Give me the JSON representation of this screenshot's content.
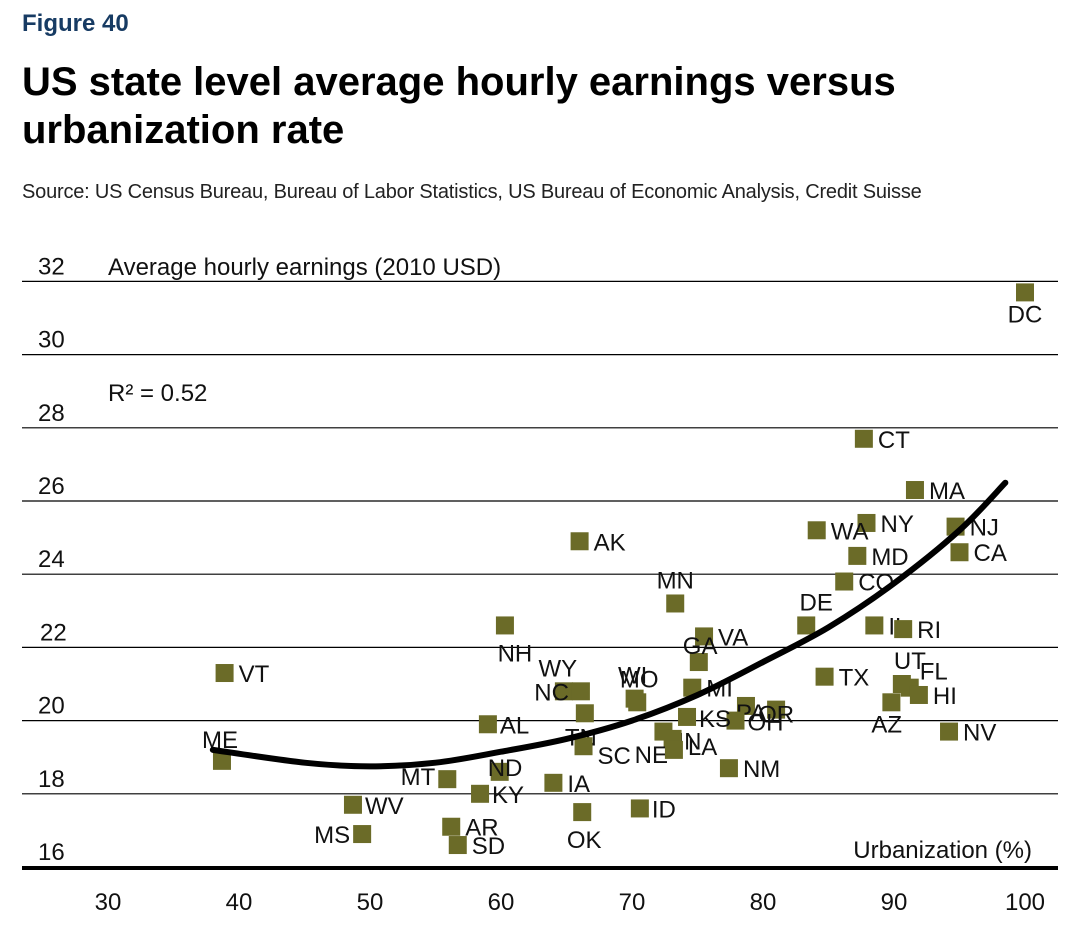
{
  "header": {
    "figure_label": "Figure 40",
    "title": "US state level average hourly earnings versus urbanization rate",
    "source": "Source: US Census Bureau, Bureau of Labor Statistics, US Bureau of Economic Analysis, Credit Suisse"
  },
  "colors": {
    "marker": "#6b6b28",
    "trend": "#000000",
    "grid": "#000000",
    "figure_label": "#173b63"
  },
  "chart_data": {
    "type": "scatter",
    "title": "US state level average hourly earnings versus urbanization rate",
    "xlabel": "Urbanization (%)",
    "ylabel": "Average hourly earnings (2010 USD)",
    "annotation": "R² = 0.52",
    "xlim": [
      25,
      102
    ],
    "ylim": [
      16,
      32
    ],
    "xticks": [
      30,
      40,
      50,
      60,
      70,
      80,
      90,
      100
    ],
    "yticks": [
      16,
      18,
      20,
      22,
      24,
      26,
      28,
      30,
      32
    ],
    "grid": "horizontal",
    "legend": "none",
    "trendline": {
      "type": "quadratic",
      "x": [
        38,
        45,
        50,
        55,
        60,
        65,
        70,
        75,
        80,
        85,
        90,
        95,
        98.5
      ],
      "y": [
        19.2,
        18.85,
        18.75,
        18.85,
        19.15,
        19.5,
        20.0,
        20.7,
        21.6,
        22.55,
        23.75,
        25.2,
        26.5
      ]
    },
    "points": [
      {
        "state": "DC",
        "x": 100,
        "y": 31.7
      },
      {
        "state": "CT",
        "x": 87.7,
        "y": 27.7
      },
      {
        "state": "MA",
        "x": 91.6,
        "y": 26.3
      },
      {
        "state": "NJ",
        "x": 94.7,
        "y": 25.3
      },
      {
        "state": "CA",
        "x": 95.0,
        "y": 24.6
      },
      {
        "state": "NY",
        "x": 87.9,
        "y": 25.4
      },
      {
        "state": "WA",
        "x": 84.1,
        "y": 25.2
      },
      {
        "state": "MD",
        "x": 87.2,
        "y": 24.5
      },
      {
        "state": "CO",
        "x": 86.2,
        "y": 23.8
      },
      {
        "state": "AK",
        "x": 66.0,
        "y": 24.9
      },
      {
        "state": "MN",
        "x": 73.3,
        "y": 23.2
      },
      {
        "state": "DE",
        "x": 83.3,
        "y": 22.6
      },
      {
        "state": "IL",
        "x": 88.5,
        "y": 22.6
      },
      {
        "state": "RI",
        "x": 90.7,
        "y": 22.5
      },
      {
        "state": "VA",
        "x": 75.5,
        "y": 22.3
      },
      {
        "state": "NH",
        "x": 60.3,
        "y": 22.6
      },
      {
        "state": "VT",
        "x": 38.9,
        "y": 21.3
      },
      {
        "state": "WY",
        "x": 64.8,
        "y": 20.8
      },
      {
        "state": "WI",
        "x": 70.2,
        "y": 20.6
      },
      {
        "state": "MO",
        "x": 70.4,
        "y": 20.5
      },
      {
        "state": "GA",
        "x": 75.1,
        "y": 21.6
      },
      {
        "state": "TX",
        "x": 84.7,
        "y": 21.2
      },
      {
        "state": "UT",
        "x": 90.6,
        "y": 21.0
      },
      {
        "state": "FL",
        "x": 91.2,
        "y": 20.9
      },
      {
        "state": "HI",
        "x": 91.9,
        "y": 20.7
      },
      {
        "state": "MI",
        "x": 74.6,
        "y": 20.9
      },
      {
        "state": "OR",
        "x": 81.0,
        "y": 20.3
      },
      {
        "state": "PA",
        "x": 78.7,
        "y": 20.4
      },
      {
        "state": "OH",
        "x": 77.9,
        "y": 20.0
      },
      {
        "state": "NC",
        "x": 66.1,
        "y": 20.8
      },
      {
        "state": "TN",
        "x": 66.4,
        "y": 20.2
      },
      {
        "state": "KS",
        "x": 74.2,
        "y": 20.1
      },
      {
        "state": "AZ",
        "x": 89.8,
        "y": 20.5
      },
      {
        "state": "NV",
        "x": 94.2,
        "y": 19.7
      },
      {
        "state": "AL",
        "x": 59.0,
        "y": 19.9
      },
      {
        "state": "IN",
        "x": 72.4,
        "y": 19.7
      },
      {
        "state": "NE",
        "x": 73.1,
        "y": 19.5
      },
      {
        "state": "LA",
        "x": 73.2,
        "y": 19.2
      },
      {
        "state": "SC",
        "x": 66.3,
        "y": 19.3
      },
      {
        "state": "NM",
        "x": 77.4,
        "y": 18.7
      },
      {
        "state": "ME",
        "x": 38.7,
        "y": 18.9
      },
      {
        "state": "IA",
        "x": 64.0,
        "y": 18.3
      },
      {
        "state": "ND",
        "x": 59.9,
        "y": 18.6
      },
      {
        "state": "MT",
        "x": 55.9,
        "y": 18.4
      },
      {
        "state": "KY",
        "x": 58.4,
        "y": 18.0
      },
      {
        "state": "ID",
        "x": 70.6,
        "y": 17.6
      },
      {
        "state": "OK",
        "x": 66.2,
        "y": 17.5
      },
      {
        "state": "AR",
        "x": 56.2,
        "y": 17.1
      },
      {
        "state": "WV",
        "x": 48.7,
        "y": 17.7
      },
      {
        "state": "MS",
        "x": 49.4,
        "y": 16.9
      },
      {
        "state": "SD",
        "x": 56.7,
        "y": 16.6
      }
    ]
  }
}
